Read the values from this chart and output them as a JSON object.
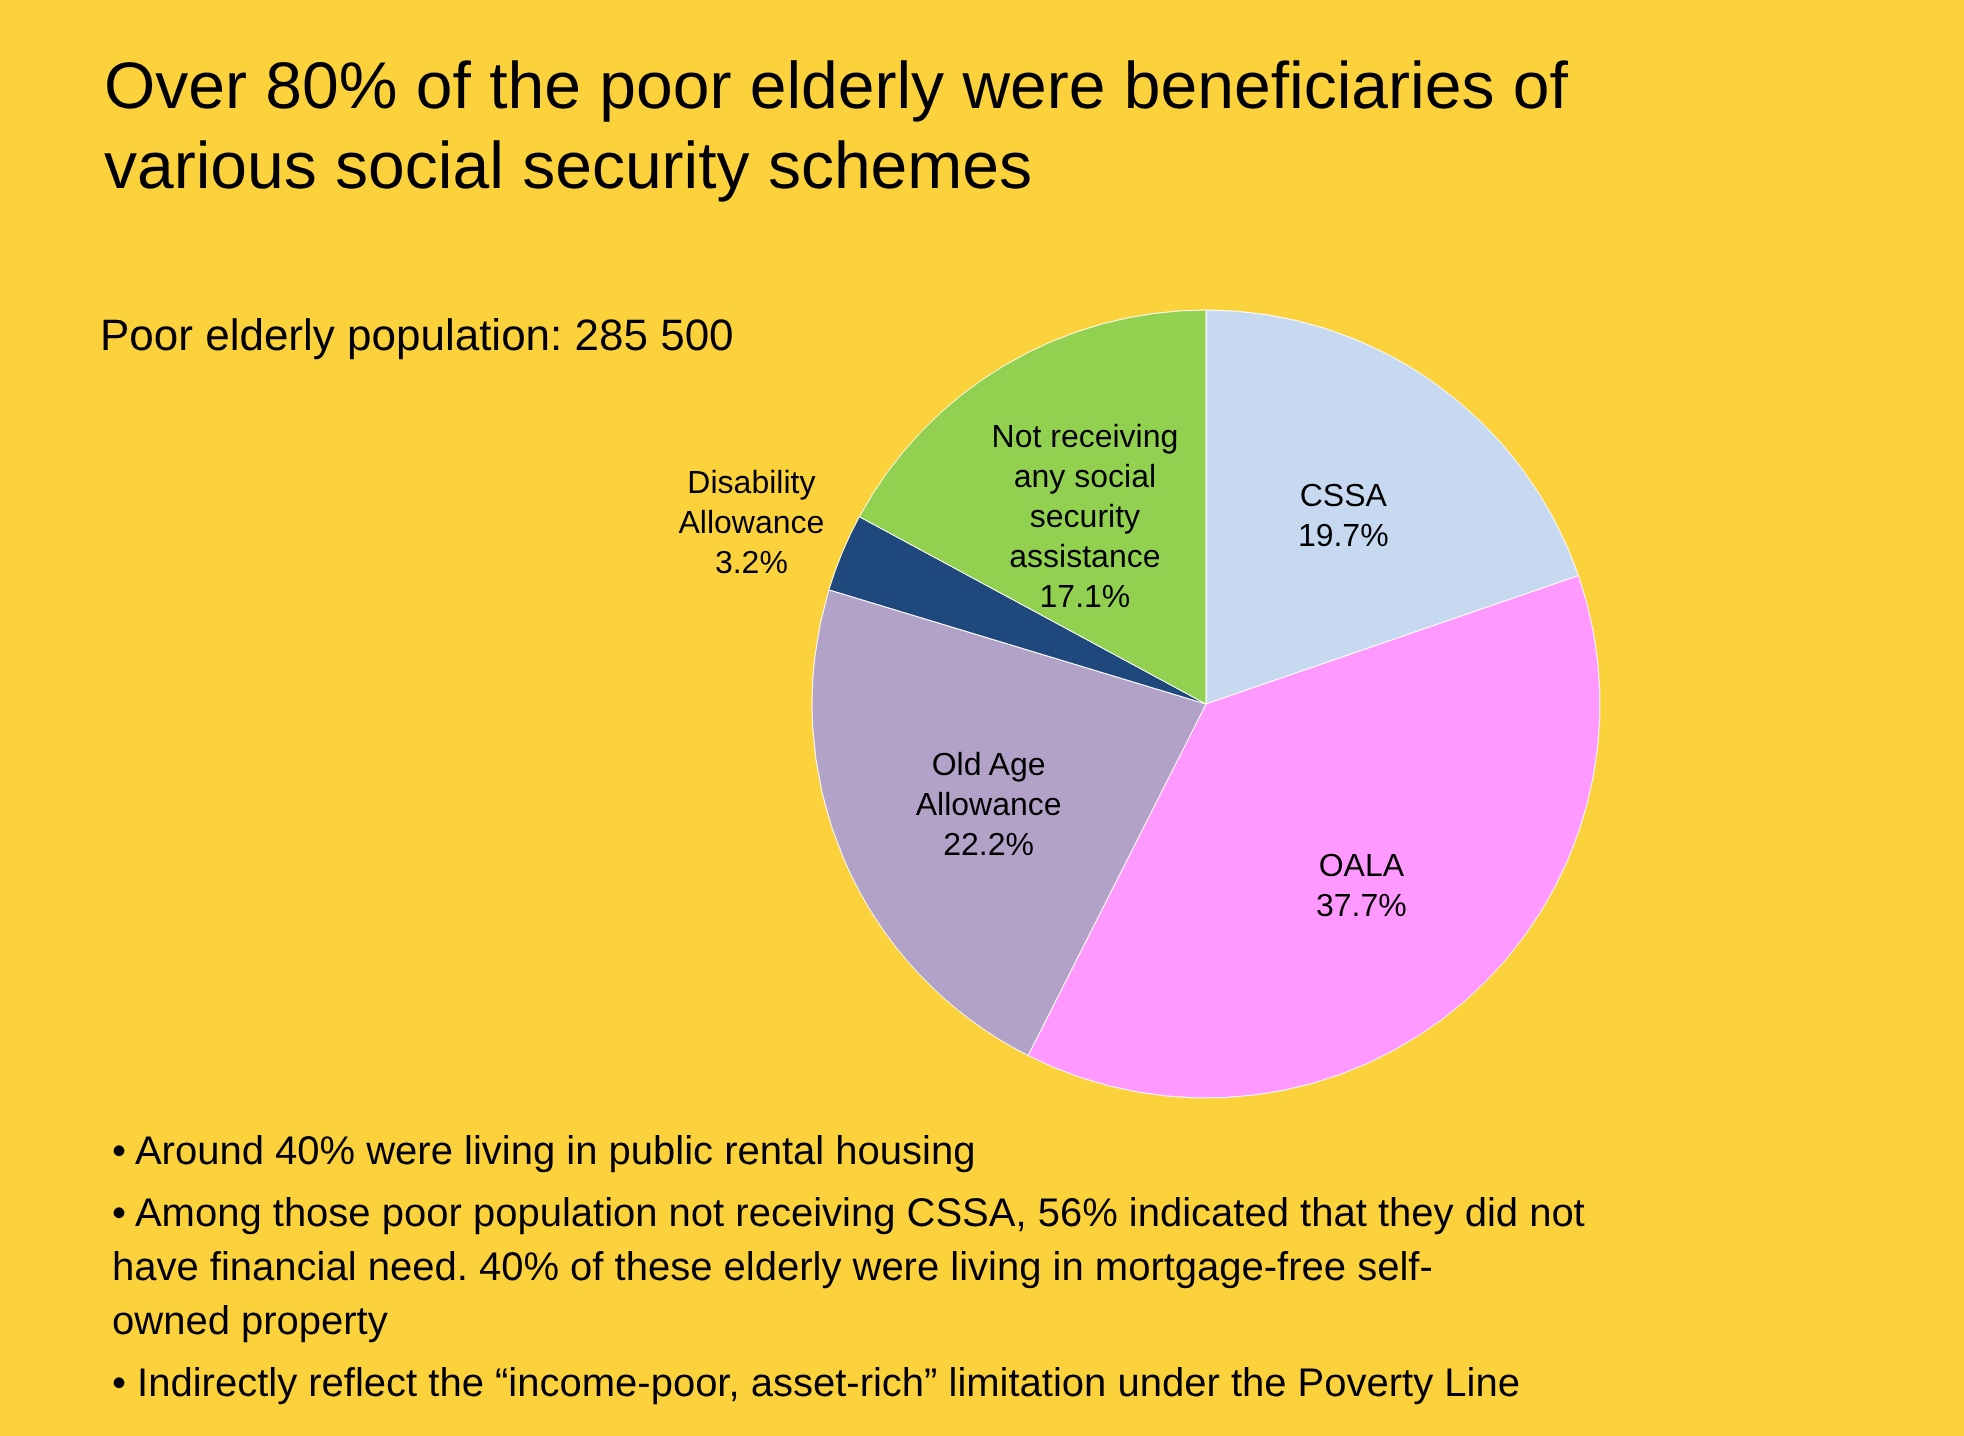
{
  "chart_data": {
    "type": "pie",
    "title": "Over 80% of the poor elderly were beneficiaries of various social security schemes",
    "subtitle": "Poor elderly population: 285 500",
    "categories": [
      "CSSA",
      "OALA",
      "Old Age Allowance",
      "Disability Allowance",
      "Not receiving any social security assistance"
    ],
    "values": [
      19.7,
      37.7,
      22.2,
      3.2,
      17.1
    ],
    "value_labels": [
      "19.7%",
      "37.7%",
      "22.2%",
      "3.2%",
      "17.1%"
    ],
    "colors": [
      "#c6d9f1",
      "#ff99ff",
      "#b3a2c7",
      "#1f497d",
      "#92d050"
    ],
    "annotations": [
      "• Around 40% were living in public rental housing",
      "• Among those poor population not receiving CSSA, 56% indicated that they did not have financial need.  40% of these elderly were living in mortgage-free self-owned property",
      "• Indirectly reflect the “income-poor, asset-rich” limitation under the Poverty Line"
    ]
  }
}
